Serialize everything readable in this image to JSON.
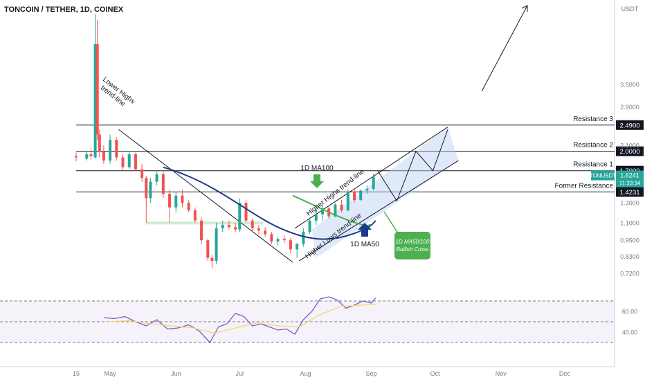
{
  "header": {
    "title": "TONCOIN / TETHER, 1D, COINEX"
  },
  "axis": {
    "currency": "USDT"
  },
  "chart_data": [
    {
      "type": "candlestick",
      "title": "TONCOIN / TETHER, 1D, COINEX",
      "y_scale": "log",
      "ylim": [
        0.68,
        6.5
      ],
      "y_ticks": [
        0.72,
        0.83,
        0.95,
        1.1,
        1.3,
        2.1,
        2.9,
        3.5
      ],
      "y_tick_labels": [
        "0.7200",
        "0.8300",
        "0.9500",
        "1.1000",
        "1.3000",
        "2.1000",
        "2.9000",
        "3.5000"
      ],
      "x_tick_labels": [
        "15",
        "May",
        "Jun",
        "Jul",
        "Aug",
        "Sep",
        "Oct",
        "Nov",
        "Dec"
      ],
      "x_ticks": [
        15,
        31,
        62,
        92,
        123,
        154,
        184,
        215,
        245
      ],
      "xlim": [
        15,
        262
      ],
      "grid": false,
      "candles": [
        {
          "t": 15,
          "o": 1.92,
          "h": 1.98,
          "l": 1.84,
          "c": 1.9
        },
        {
          "t": 20,
          "o": 1.88,
          "h": 2.01,
          "l": 1.85,
          "c": 1.95
        },
        {
          "t": 22,
          "o": 1.95,
          "h": 2.05,
          "l": 1.86,
          "c": 1.92
        },
        {
          "t": 24,
          "o": 1.9,
          "h": 6.3,
          "l": 1.88,
          "c": 4.9
        },
        {
          "t": 25,
          "o": 4.9,
          "h": 6.0,
          "l": 2.2,
          "c": 2.3
        },
        {
          "t": 26,
          "o": 2.3,
          "h": 2.4,
          "l": 1.9,
          "c": 2.0
        },
        {
          "t": 28,
          "o": 2.0,
          "h": 2.1,
          "l": 1.8,
          "c": 1.85
        },
        {
          "t": 31,
          "o": 1.85,
          "h": 2.3,
          "l": 1.8,
          "c": 2.2
        },
        {
          "t": 34,
          "o": 2.2,
          "h": 2.25,
          "l": 1.85,
          "c": 1.9
        },
        {
          "t": 37,
          "o": 1.9,
          "h": 1.95,
          "l": 1.7,
          "c": 1.75
        },
        {
          "t": 40,
          "o": 1.75,
          "h": 2.0,
          "l": 1.72,
          "c": 1.95
        },
        {
          "t": 43,
          "o": 1.95,
          "h": 1.98,
          "l": 1.7,
          "c": 1.72
        },
        {
          "t": 46,
          "o": 1.72,
          "h": 1.8,
          "l": 1.55,
          "c": 1.6
        },
        {
          "t": 48,
          "o": 1.6,
          "h": 1.63,
          "l": 1.1,
          "c": 1.35
        },
        {
          "t": 50,
          "o": 1.35,
          "h": 1.6,
          "l": 1.3,
          "c": 1.55
        },
        {
          "t": 53,
          "o": 1.55,
          "h": 1.7,
          "l": 1.5,
          "c": 1.65
        },
        {
          "t": 56,
          "o": 1.65,
          "h": 1.7,
          "l": 1.35,
          "c": 1.4
        },
        {
          "t": 59,
          "o": 1.4,
          "h": 1.45,
          "l": 1.1,
          "c": 1.25
        },
        {
          "t": 62,
          "o": 1.25,
          "h": 1.42,
          "l": 1.2,
          "c": 1.38
        },
        {
          "t": 65,
          "o": 1.38,
          "h": 1.45,
          "l": 1.25,
          "c": 1.3
        },
        {
          "t": 68,
          "o": 1.3,
          "h": 1.33,
          "l": 1.2,
          "c": 1.22
        },
        {
          "t": 71,
          "o": 1.22,
          "h": 1.25,
          "l": 1.1,
          "c": 1.12
        },
        {
          "t": 74,
          "o": 1.12,
          "h": 1.15,
          "l": 0.92,
          "c": 0.95
        },
        {
          "t": 77,
          "o": 0.95,
          "h": 0.96,
          "l": 0.8,
          "c": 0.82
        },
        {
          "t": 79,
          "o": 0.82,
          "h": 0.84,
          "l": 0.75,
          "c": 0.8
        },
        {
          "t": 81,
          "o": 0.8,
          "h": 1.1,
          "l": 0.78,
          "c": 1.05
        },
        {
          "t": 84,
          "o": 1.05,
          "h": 1.12,
          "l": 1.02,
          "c": 1.08
        },
        {
          "t": 87,
          "o": 1.08,
          "h": 1.12,
          "l": 1.04,
          "c": 1.06
        },
        {
          "t": 90,
          "o": 1.06,
          "h": 1.1,
          "l": 1.02,
          "c": 1.04
        },
        {
          "t": 92,
          "o": 1.04,
          "h": 1.35,
          "l": 1.02,
          "c": 1.3
        },
        {
          "t": 95,
          "o": 1.3,
          "h": 1.33,
          "l": 1.1,
          "c": 1.12
        },
        {
          "t": 98,
          "o": 1.12,
          "h": 1.14,
          "l": 1.02,
          "c": 1.05
        },
        {
          "t": 101,
          "o": 1.05,
          "h": 1.08,
          "l": 1.0,
          "c": 1.03
        },
        {
          "t": 104,
          "o": 1.03,
          "h": 1.06,
          "l": 0.98,
          "c": 1.0
        },
        {
          "t": 107,
          "o": 1.0,
          "h": 1.02,
          "l": 0.92,
          "c": 0.94
        },
        {
          "t": 110,
          "o": 0.94,
          "h": 0.98,
          "l": 0.91,
          "c": 0.96
        },
        {
          "t": 113,
          "o": 0.96,
          "h": 0.99,
          "l": 0.93,
          "c": 0.95
        },
        {
          "t": 116,
          "o": 0.95,
          "h": 0.97,
          "l": 0.85,
          "c": 0.88
        },
        {
          "t": 119,
          "o": 0.88,
          "h": 0.93,
          "l": 0.82,
          "c": 0.92
        },
        {
          "t": 122,
          "o": 0.92,
          "h": 1.05,
          "l": 0.9,
          "c": 1.02
        },
        {
          "t": 125,
          "o": 1.02,
          "h": 1.15,
          "l": 1.0,
          "c": 1.12
        },
        {
          "t": 128,
          "o": 1.12,
          "h": 1.22,
          "l": 1.08,
          "c": 1.18
        },
        {
          "t": 131,
          "o": 1.18,
          "h": 1.28,
          "l": 1.12,
          "c": 1.24
        },
        {
          "t": 134,
          "o": 1.24,
          "h": 1.27,
          "l": 1.14,
          "c": 1.16
        },
        {
          "t": 137,
          "o": 1.16,
          "h": 1.3,
          "l": 1.15,
          "c": 1.28
        },
        {
          "t": 140,
          "o": 1.28,
          "h": 1.33,
          "l": 1.2,
          "c": 1.22
        },
        {
          "t": 143,
          "o": 1.22,
          "h": 1.45,
          "l": 1.21,
          "c": 1.43
        },
        {
          "t": 146,
          "o": 1.43,
          "h": 1.46,
          "l": 1.3,
          "c": 1.33
        },
        {
          "t": 149,
          "o": 1.33,
          "h": 1.45,
          "l": 1.32,
          "c": 1.44
        },
        {
          "t": 152,
          "o": 1.44,
          "h": 1.5,
          "l": 1.4,
          "c": 1.46
        },
        {
          "t": 155,
          "o": 1.46,
          "h": 1.66,
          "l": 1.44,
          "c": 1.62
        }
      ],
      "levels": [
        {
          "label": "Resistance 3",
          "value": 2.49,
          "value_label": "2.4900"
        },
        {
          "label": "Resistance 2",
          "value": 2.0,
          "value_label": "2.0000"
        },
        {
          "label": "Resistance 1",
          "value": 1.7,
          "value_label": "1.7000"
        },
        {
          "label": "Former Resistance",
          "value": 1.4231,
          "value_label": "1.4231"
        }
      ],
      "current_price": {
        "symbol": "TONUSDT",
        "price": "1.6241",
        "countdown": "11:33:34"
      },
      "annotations": [
        "Lower Highs trend-line",
        "1D MA100",
        "Higher Highs trend-line",
        "Higher Lows trend-line",
        "1D MA50",
        "1D MA50/100 Bullish Cross"
      ]
    },
    {
      "type": "line",
      "title": "",
      "ylim": [
        20,
        80
      ],
      "y_ticks": [
        40,
        60
      ],
      "y_tick_labels": [
        "40.00",
        "60.00"
      ],
      "bands": [
        70,
        30
      ],
      "series": [
        {
          "x": [
            28,
            33,
            38,
            43,
            48,
            53,
            58,
            63,
            68,
            73,
            78,
            82,
            86,
            90,
            94,
            98,
            102,
            106,
            110,
            114,
            118,
            122,
            126,
            130,
            134,
            138,
            142,
            146,
            150,
            154,
            156
          ],
          "y": [
            54,
            53,
            55,
            50,
            46,
            52,
            43,
            44,
            47,
            41,
            30,
            45,
            48,
            58,
            55,
            46,
            48,
            45,
            42,
            43,
            38,
            52,
            60,
            72,
            74,
            71,
            63,
            66,
            70,
            68,
            73
          ]
        },
        {
          "x": [
            30,
            40,
            50,
            60,
            70,
            80,
            90,
            100,
            110,
            120,
            130,
            140,
            150,
            156
          ],
          "y": [
            50,
            51,
            48,
            46,
            44,
            39,
            44,
            49,
            46,
            45,
            57,
            65,
            66,
            67
          ]
        }
      ]
    }
  ]
}
